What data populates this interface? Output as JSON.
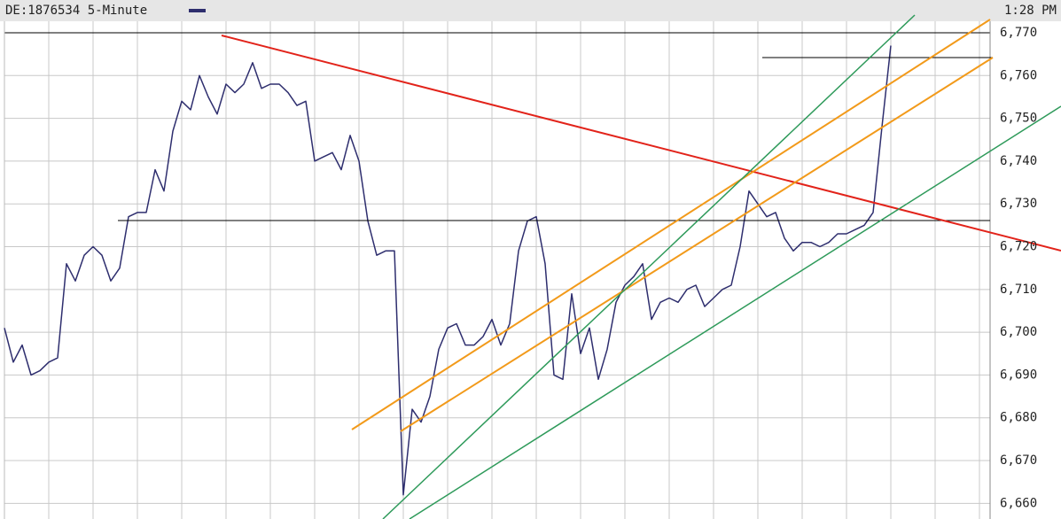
{
  "chart_data": {
    "type": "line",
    "title": "DE:1876534 5-Minute",
    "time": "1:28 PM",
    "color": "#2e2e6e",
    "values": [
      6701,
      6693,
      6697,
      6690,
      6691,
      6693,
      6694,
      6716,
      6712,
      6718,
      6720,
      6718,
      6712,
      6715,
      6727,
      6728,
      6728,
      6738,
      6733,
      6747,
      6754,
      6752,
      6760,
      6755,
      6751,
      6758,
      6756,
      6758,
      6763,
      6757,
      6758,
      6758,
      6756,
      6753,
      6754,
      6740,
      6741,
      6742,
      6738,
      6746,
      6740,
      6726,
      6718,
      6719,
      6719,
      6662,
      6682,
      6679,
      6685,
      6696,
      6701,
      6702,
      6697,
      6697,
      6699,
      6703,
      6697,
      6702,
      6719,
      6726,
      6727,
      6716,
      6690,
      6689,
      6709,
      6695,
      6701,
      6689,
      6696,
      6707,
      6711,
      6713,
      6716,
      6703,
      6707,
      6708,
      6707,
      6710,
      6711,
      6706,
      6708,
      6710,
      6711,
      6720,
      6733,
      6730,
      6727,
      6728,
      6722,
      6719,
      6721,
      6721,
      6720,
      6721,
      6723,
      6723,
      6724,
      6725,
      6728,
      6748,
      6767
    ],
    "ylim": [
      6658,
      6770
    ],
    "yticks": [
      {
        "value": 6660,
        "label": "6,660"
      },
      {
        "value": 6670,
        "label": "6,670"
      },
      {
        "value": 6680,
        "label": "6,680"
      },
      {
        "value": 6690,
        "label": "6,690"
      },
      {
        "value": 6700,
        "label": "6,700"
      },
      {
        "value": 6710,
        "label": "6,710"
      },
      {
        "value": 6720,
        "label": "6,720"
      },
      {
        "value": 6730,
        "label": "6,730"
      },
      {
        "value": 6740,
        "label": "6,740"
      },
      {
        "value": 6750,
        "label": "6,750"
      },
      {
        "value": 6760,
        "label": "6,760"
      },
      {
        "value": 6770,
        "label": "6,770"
      }
    ],
    "grid": true
  }
}
